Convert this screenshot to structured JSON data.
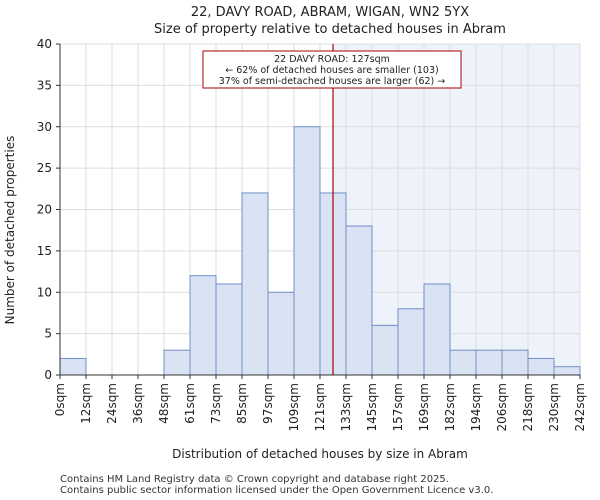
{
  "chart_data": {
    "type": "bar",
    "title": "22, DAVY ROAD, ABRAM, WIGAN, WN2 5YX",
    "subtitle": "Size of property relative to detached houses in Abram",
    "xlabel": "Distribution of detached houses by size in Abram",
    "ylabel": "Number of detached properties",
    "ylim": [
      0,
      40
    ],
    "yticks": [
      "0",
      "5",
      "10",
      "15",
      "20",
      "25",
      "30",
      "35",
      "40"
    ],
    "bin_edges": [
      0,
      12,
      24,
      36,
      48,
      61,
      73,
      85,
      97,
      109,
      121,
      133,
      145,
      157,
      169,
      182,
      194,
      206,
      218,
      230,
      242
    ],
    "x_tick_labels": [
      "0sqm",
      "12sqm",
      "24sqm",
      "36sqm",
      "48sqm",
      "61sqm",
      "73sqm",
      "85sqm",
      "97sqm",
      "109sqm",
      "121sqm",
      "133sqm",
      "145sqm",
      "157sqm",
      "169sqm",
      "182sqm",
      "194sqm",
      "206sqm",
      "218sqm",
      "230sqm",
      "242sqm"
    ],
    "values": [
      2,
      0,
      0,
      0,
      3,
      12,
      11,
      22,
      10,
      30,
      22,
      18,
      6,
      8,
      11,
      3,
      3,
      3,
      2,
      1
    ],
    "grid": true,
    "marker": {
      "value": 127,
      "annotation": [
        "22 DAVY ROAD: 127sqm",
        "← 62% of detached houses are smaller (103)",
        "37% of semi-detached houses are larger (62) →"
      ]
    },
    "colors": {
      "bar_fill": "#dae3f3",
      "bar_stroke": "#6f8fc7",
      "marker": "#aa0000",
      "highlight": "#eef2fa",
      "grid": "#dddddd"
    }
  },
  "footer": {
    "line1": "Contains HM Land Registry data © Crown copyright and database right 2025.",
    "line2": "Contains public sector information licensed under the Open Government Licence v3.0."
  }
}
